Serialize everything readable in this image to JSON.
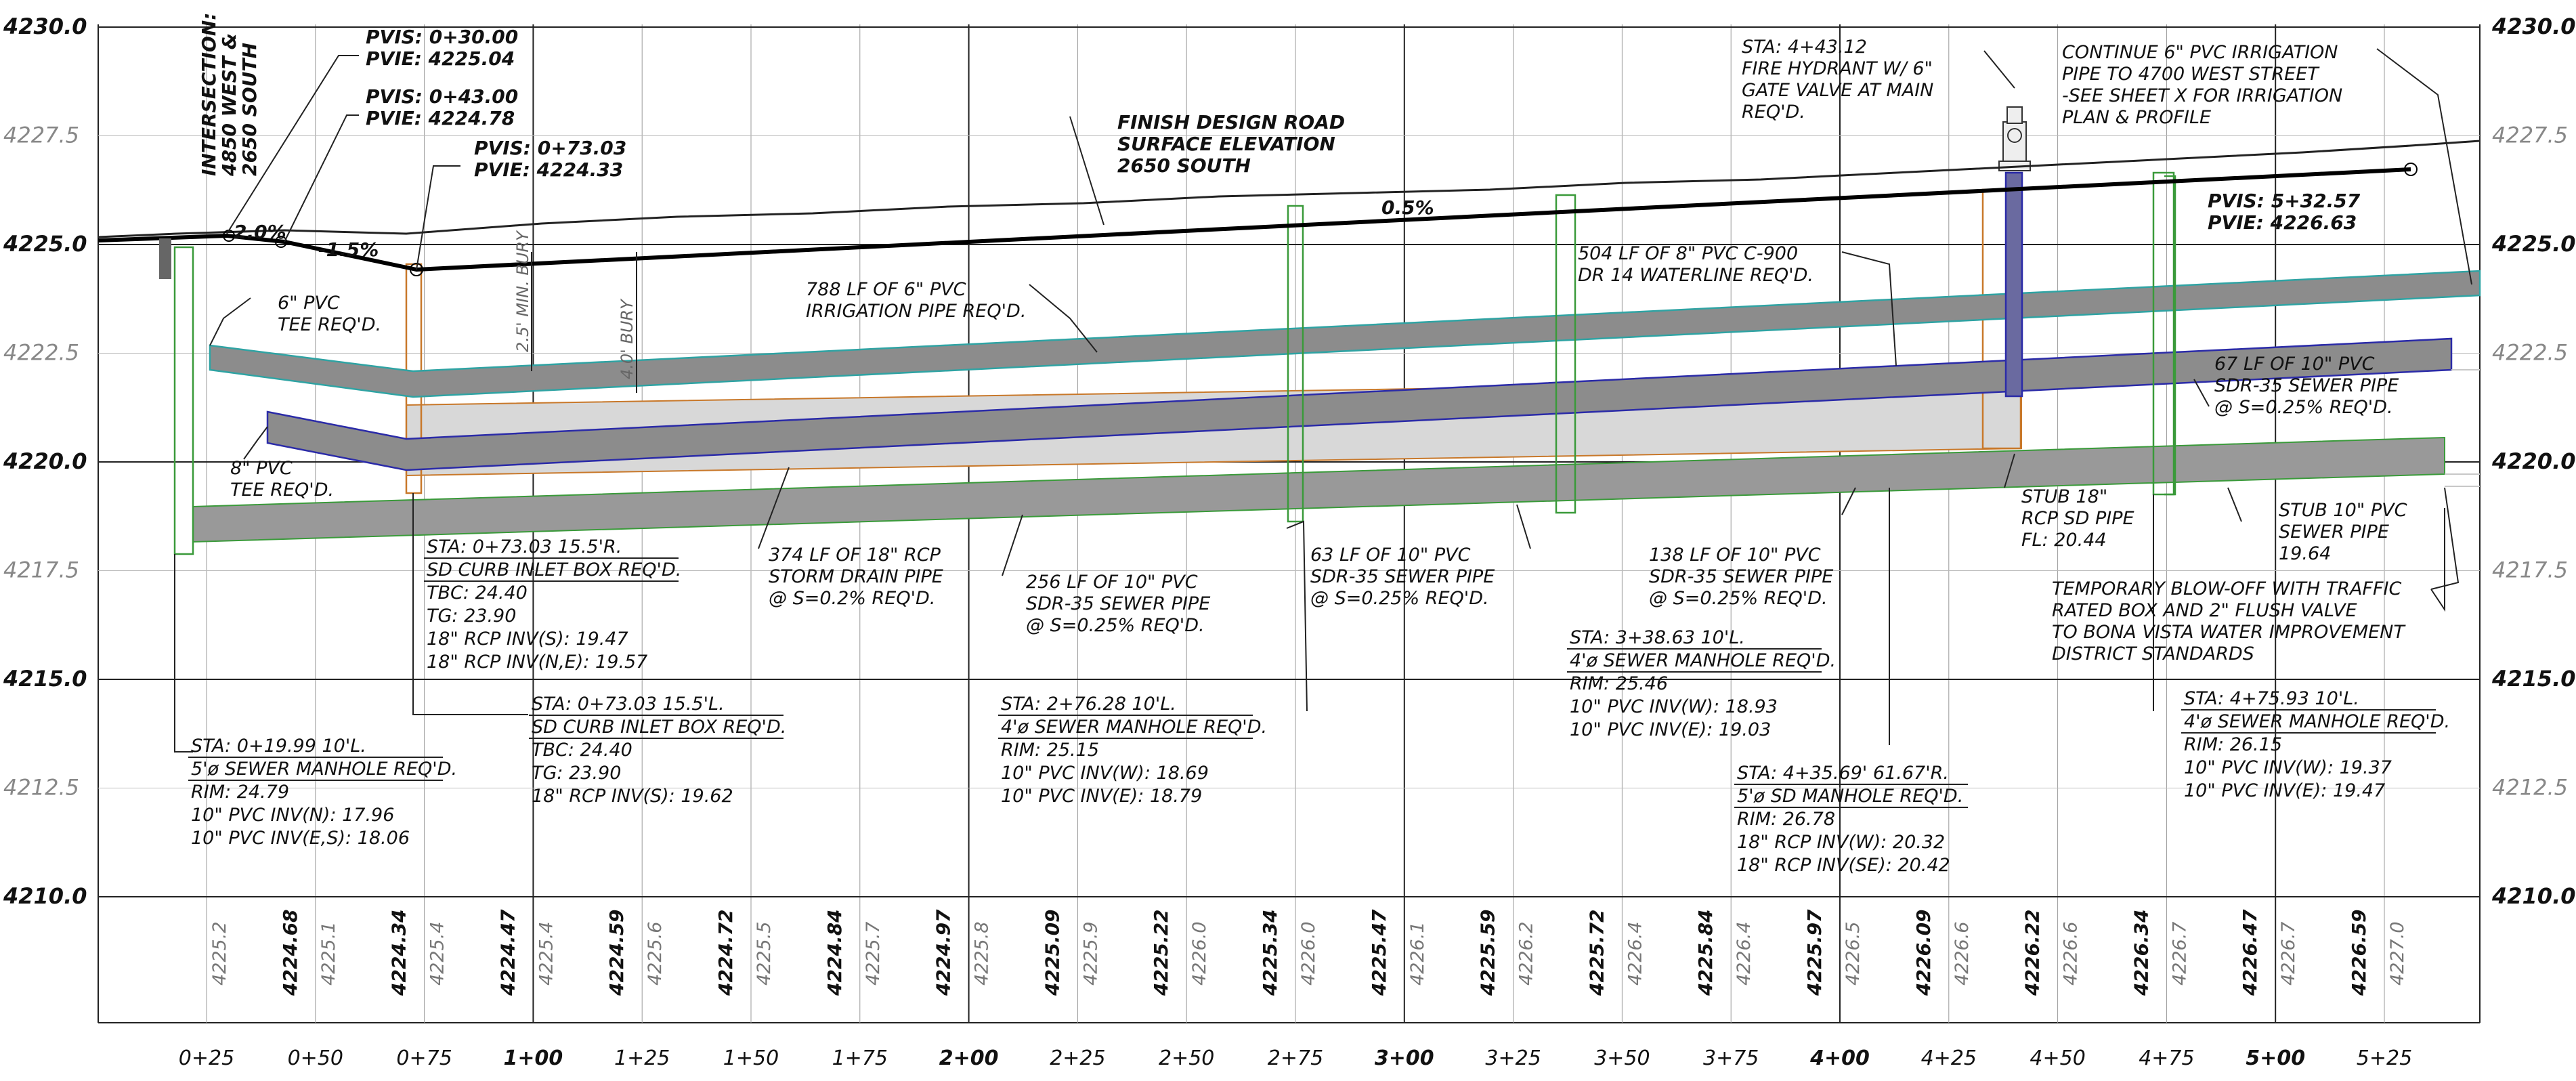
{
  "elevations_left": [
    {
      "label": "4230.0",
      "bold": true
    },
    {
      "label": "4227.5",
      "bold": false
    },
    {
      "label": "4225.0",
      "bold": true
    },
    {
      "label": "4222.5",
      "bold": false
    },
    {
      "label": "4220.0",
      "bold": true
    },
    {
      "label": "4217.5",
      "bold": false
    },
    {
      "label": "4215.0",
      "bold": true
    },
    {
      "label": "4212.5",
      "bold": false
    },
    {
      "label": "4210.0",
      "bold": true
    }
  ],
  "stations": [
    {
      "label": "0+25",
      "major": false
    },
    {
      "label": "0+50",
      "major": false
    },
    {
      "label": "0+75",
      "major": false
    },
    {
      "label": "1+00",
      "major": true
    },
    {
      "label": "1+25",
      "major": false
    },
    {
      "label": "1+50",
      "major": false
    },
    {
      "label": "1+75",
      "major": false
    },
    {
      "label": "2+00",
      "major": true
    },
    {
      "label": "2+25",
      "major": false
    },
    {
      "label": "2+50",
      "major": false
    },
    {
      "label": "2+75",
      "major": false
    },
    {
      "label": "3+00",
      "major": true
    },
    {
      "label": "3+25",
      "major": false
    },
    {
      "label": "3+50",
      "major": false
    },
    {
      "label": "3+75",
      "major": false
    },
    {
      "label": "4+00",
      "major": true
    },
    {
      "label": "4+25",
      "major": false
    },
    {
      "label": "4+50",
      "major": false
    },
    {
      "label": "4+75",
      "major": false
    },
    {
      "label": "5+00",
      "major": true
    },
    {
      "label": "5+25",
      "major": false
    }
  ],
  "ground_elevations": [
    "4225.2",
    "4225.1",
    "4225.4",
    "4225.4",
    "4225.6",
    "4225.5",
    "4225.7",
    "4225.8",
    "4225.9",
    "4226.0",
    "4226.0",
    "4226.1",
    "4226.2",
    "4226.4",
    "4226.4",
    "4226.5",
    "4226.6",
    "4226.6",
    "4226.7",
    "4226.7",
    "4227.0"
  ],
  "finish_elevations": [
    "4224.68",
    "4224.34",
    "4224.47",
    "4224.59",
    "4224.72",
    "4224.84",
    "4224.97",
    "4225.09",
    "4225.22",
    "4225.34",
    "4225.47",
    "4225.59",
    "4225.72",
    "4225.84",
    "4225.97",
    "4226.09",
    "4226.22",
    "4226.34",
    "4226.47",
    "4226.59"
  ],
  "colors": {
    "water": "#2b2ba8",
    "irrigation": "#2fa3a3",
    "sewer": "#3a9a3a",
    "storm": "#c8782a",
    "pipe_fill": "#888888",
    "storm_fill": "#d8d8d8",
    "grid": "#222222"
  },
  "labels": {
    "intersection": [
      "INTERSECTION:",
      "4850 WEST &",
      "2650 SOUTH"
    ],
    "pvi1": [
      "PVIS: 0+30.00",
      "PVIE: 4225.04"
    ],
    "pvi2": [
      "PVIS: 0+43.00",
      "PVIE: 4224.78"
    ],
    "pvi3": [
      "PVIS: 0+73.03",
      "PVIE: 4224.33"
    ],
    "pvi4": [
      "PVIS: 5+32.57",
      "PVIE: 4226.63"
    ],
    "slope_left": "2.0%",
    "slope_neg": "-1.5%",
    "slope_main": "0.5%",
    "finish_road": [
      "FINISH DESIGN ROAD",
      "SURFACE ELEVATION",
      "2650 SOUTH"
    ],
    "bury_min": "2.5' MIN. BURY",
    "bury_4": "4.0' BURY",
    "tee6": [
      "6\" PVC",
      "TEE REQ'D."
    ],
    "tee8": [
      "8\" PVC",
      "TEE REQ'D."
    ],
    "irrigation": [
      "788 LF OF 6\" PVC",
      "IRRIGATION PIPE REQ'D."
    ],
    "waterline": [
      "504 LF OF 8\" PVC C-900",
      "DR 14 WATERLINE REQ'D."
    ],
    "hydrant": [
      "STA: 4+43.12",
      "FIRE HYDRANT W/ 6\"",
      "GATE VALVE AT MAIN",
      "REQ'D."
    ],
    "continue": [
      "CONTINUE 6\" PVC IRRIGATION",
      "PIPE TO 4700 WEST STREET",
      "-SEE SHEET X FOR IRRIGATION",
      "PLAN & PROFILE"
    ],
    "sewer67": [
      "67 LF OF 10\" PVC",
      "SDR-35 SEWER PIPE",
      "@ S=0.25% REQ'D."
    ],
    "stub18": [
      "STUB 18\"",
      "RCP SD PIPE",
      "FL: 20.44"
    ],
    "stub10": [
      "STUB 10\" PVC",
      "SEWER PIPE",
      "19.64"
    ],
    "blowoff": [
      "TEMPORARY BLOW-OFF WITH TRAFFIC",
      "RATED BOX AND 2\" FLUSH VALVE",
      "TO BONA VISTA WATER IMPROVEMENT",
      "DISTRICT STANDARDS"
    ],
    "storm374": [
      "374 LF OF 18\" RCP",
      "STORM DRAIN PIPE",
      "@ S=0.2% REQ'D."
    ],
    "sewer256": [
      "256 LF OF 10\" PVC",
      "SDR-35 SEWER PIPE",
      "@ S=0.25% REQ'D."
    ],
    "sewer63": [
      "63 LF OF 10\" PVC",
      "SDR-35 SEWER PIPE",
      "@ S=0.25% REQ'D."
    ],
    "sewer138": [
      "138 LF OF 10\" PVC",
      "SDR-35 SEWER PIPE",
      "@ S=0.25% REQ'D."
    ],
    "inlet_r": [
      "STA: 0+73.03 15.5'R.",
      "SD CURB INLET BOX REQ'D.",
      "TBC: 24.40",
      "TG: 23.90",
      "18\" RCP INV(S): 19.47",
      "18\" RCP INV(N,E): 19.57"
    ],
    "inlet_l": [
      "STA: 0+73.03 15.5'L.",
      "SD CURB INLET BOX REQ'D.",
      "TBC: 24.40",
      "TG: 23.90",
      "18\" RCP INV(S): 19.62"
    ],
    "mh019": [
      "STA: 0+19.99 10'L.",
      "5'ø SEWER MANHOLE REQ'D.",
      "RIM: 24.79",
      "10\" PVC INV(N): 17.96",
      "10\" PVC INV(E,S): 18.06"
    ],
    "mh276": [
      "STA: 2+76.28 10'L.",
      "4'ø SEWER MANHOLE REQ'D.",
      "RIM: 25.15",
      "10\" PVC INV(W): 18.69",
      "10\" PVC INV(E): 18.79"
    ],
    "mh338": [
      "STA: 3+38.63 10'L.",
      "4'ø SEWER MANHOLE REQ'D.",
      "RIM: 25.46",
      "10\" PVC INV(W): 18.93",
      "10\" PVC INV(E): 19.03"
    ],
    "mh435": [
      "STA: 4+35.69' 61.67'R.",
      "5'ø SD MANHOLE REQ'D.",
      "RIM: 26.78",
      "18\" RCP INV(W): 20.32",
      "18\" RCP INV(SE): 20.42"
    ],
    "mh475": [
      "STA: 4+75.93 10'L.",
      "4'ø SEWER MANHOLE REQ'D.",
      "RIM: 26.15",
      "10\" PVC INV(W): 19.37",
      "10\" PVC INV(E): 19.47"
    ]
  }
}
